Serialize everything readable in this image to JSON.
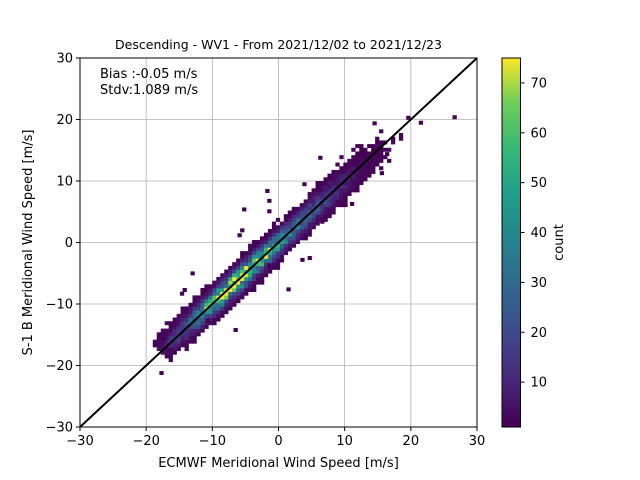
{
  "chart_data": {
    "type": "heatmap",
    "subtype": "2d-histogram",
    "title": "Descending - WV1 - From 2021/12/02 to 2021/12/23",
    "xlabel": "ECMWF Meridional Wind Speed [m/s]",
    "ylabel": "S-1 B Meridional Wind Speed [m/s]",
    "xlim": [
      -30,
      30
    ],
    "ylim": [
      -30,
      30
    ],
    "xticks": [
      -30,
      -20,
      -10,
      0,
      10,
      20,
      30
    ],
    "yticks": [
      -30,
      -20,
      -10,
      0,
      10,
      20,
      30
    ],
    "xtick_labels": [
      "−30",
      "−20",
      "−10",
      "0",
      "10",
      "20",
      "30"
    ],
    "ytick_labels": [
      "−30",
      "−20",
      "−10",
      "0",
      "10",
      "20",
      "30"
    ],
    "grid": true,
    "annotations": [
      "Bias :-0.05 m/s",
      "Stdv:1.089 m/s"
    ],
    "reference_line": {
      "x": [
        -30,
        30
      ],
      "y": [
        -30,
        30
      ],
      "color": "#000000"
    },
    "colorbar": {
      "label": "count",
      "colormap": "viridis",
      "range": [
        1,
        75
      ],
      "ticks": [
        10,
        20,
        30,
        40,
        50,
        60,
        70
      ],
      "tick_labels": [
        "10",
        "20",
        "30",
        "40",
        "50",
        "60",
        "70"
      ]
    },
    "density_model": {
      "description": "counts concentrated along y = x; peak near (-7, -7)",
      "peak_count": 72,
      "peak_center": [
        -7,
        -7
      ],
      "spread_along_diagonal": 7,
      "spread_across_diagonal": 1.2,
      "data_extent": [
        -18,
        20
      ]
    },
    "outlier_bins": [
      {
        "x": -18.0,
        "y": -21.5,
        "count": 1
      },
      {
        "x": 26.3,
        "y": 20.1,
        "count": 2
      },
      {
        "x": 21.2,
        "y": 19.2,
        "count": 1
      },
      {
        "x": 19.3,
        "y": 20.0,
        "count": 1
      },
      {
        "x": 14.2,
        "y": 19.1,
        "count": 1
      },
      {
        "x": -11.0,
        "y": -13.0,
        "count": 1
      },
      {
        "x": -6.8,
        "y": -14.5,
        "count": 1
      },
      {
        "x": -14.5,
        "y": -8.0,
        "count": 1
      },
      {
        "x": -6.2,
        "y": 0.9,
        "count": 1
      },
      {
        "x": 1.2,
        "y": -7.9,
        "count": 1
      },
      {
        "x": 3.3,
        "y": -3.1,
        "count": 1
      },
      {
        "x": -5.5,
        "y": 5.1,
        "count": 1
      },
      {
        "x": 3.6,
        "y": 9.2,
        "count": 1
      },
      {
        "x": -1.7,
        "y": 4.8,
        "count": 1
      },
      {
        "x": -5.8,
        "y": 1.7,
        "count": 1
      },
      {
        "x": 6.3,
        "y": 3.1,
        "count": 1
      },
      {
        "x": 10.8,
        "y": 6.0,
        "count": 1
      },
      {
        "x": 12.4,
        "y": 10.0,
        "count": 1
      },
      {
        "x": -14.9,
        "y": -8.6,
        "count": 1
      },
      {
        "x": -2.0,
        "y": 8.1,
        "count": 1
      },
      {
        "x": -1.7,
        "y": 6.5,
        "count": 1
      },
      {
        "x": 6.0,
        "y": 13.5,
        "count": 1
      },
      {
        "x": 16.1,
        "y": 14.1,
        "count": 1
      },
      {
        "x": -1.7,
        "y": -4.0,
        "count": 1
      },
      {
        "x": 4.4,
        "y": -2.8,
        "count": 1
      },
      {
        "x": -13.3,
        "y": -5.3,
        "count": 1
      },
      {
        "x": 15.3,
        "y": 11.0,
        "count": 1
      },
      {
        "x": -17.6,
        "y": -16.0,
        "count": 1
      }
    ]
  }
}
